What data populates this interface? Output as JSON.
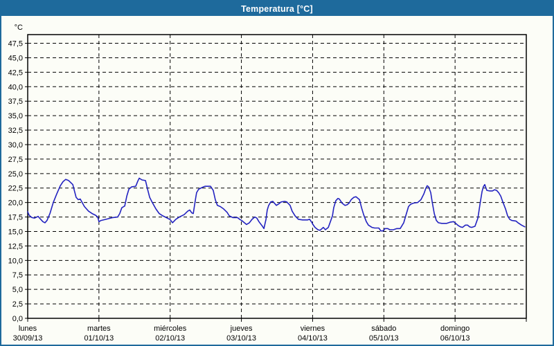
{
  "window": {
    "title": "Temperatura [°C]",
    "title_bar_color": "#1e6a9c",
    "background_color": "#fcfdf7"
  },
  "chart_data": {
    "type": "line",
    "title": "Temperatura [°C]",
    "unit_label": "°C",
    "grid": "dashed",
    "legend": "none",
    "line_color": "#2222c0",
    "y_axis": {
      "min": 0,
      "max": 47.5,
      "step": 2.5,
      "top_edge_value": 49,
      "tick_labels": [
        "0,0",
        "2,5",
        "5,0",
        "7,5",
        "10,0",
        "12,5",
        "15,0",
        "17,5",
        "20,0",
        "22,5",
        "25,0",
        "27,5",
        "30,0",
        "32,5",
        "35,0",
        "37,5",
        "40,0",
        "42,5",
        "45,0",
        "47,5"
      ]
    },
    "x_axis": {
      "hours_total": 168,
      "days": [
        {
          "name": "lunes",
          "date": "30/09/13"
        },
        {
          "name": "martes",
          "date": "01/10/13"
        },
        {
          "name": "miércoles",
          "date": "02/10/13"
        },
        {
          "name": "jueves",
          "date": "03/10/13"
        },
        {
          "name": "viernes",
          "date": "04/10/13"
        },
        {
          "name": "sábado",
          "date": "05/10/13"
        },
        {
          "name": "domingo",
          "date": "06/10/13"
        }
      ]
    },
    "series": [
      {
        "name": "Temperatura",
        "color": "#2222c0",
        "points": [
          [
            0,
            18.4
          ],
          [
            0.5,
            17.8
          ],
          [
            1.4,
            17.4
          ],
          [
            2.3,
            17.3
          ],
          [
            3.5,
            17.6
          ],
          [
            4.2,
            17.2
          ],
          [
            5.1,
            16.7
          ],
          [
            5.8,
            16.5
          ],
          [
            6.5,
            16.9
          ],
          [
            7.5,
            18.1
          ],
          [
            8.6,
            20.0
          ],
          [
            9.8,
            21.5
          ],
          [
            11.0,
            22.9
          ],
          [
            11.9,
            23.6
          ],
          [
            12.8,
            24.0
          ],
          [
            13.8,
            23.8
          ],
          [
            15.2,
            23.1
          ],
          [
            16.3,
            20.9
          ],
          [
            17.0,
            20.5
          ],
          [
            17.7,
            20.6
          ],
          [
            19.1,
            19.3
          ],
          [
            20.5,
            18.5
          ],
          [
            21.7,
            18.1
          ],
          [
            22.9,
            17.8
          ],
          [
            23.6,
            17.5
          ],
          [
            24.0,
            16.7
          ],
          [
            24.7,
            16.9
          ],
          [
            26.4,
            17.1
          ],
          [
            28.7,
            17.4
          ],
          [
            30.3,
            17.5
          ],
          [
            31.0,
            18.1
          ],
          [
            31.7,
            19.1
          ],
          [
            32.7,
            19.4
          ],
          [
            33.4,
            21.1
          ],
          [
            34.1,
            22.3
          ],
          [
            35.0,
            22.7
          ],
          [
            36.4,
            22.8
          ],
          [
            37.1,
            23.7
          ],
          [
            37.6,
            24.2
          ],
          [
            38.5,
            23.9
          ],
          [
            39.7,
            23.8
          ],
          [
            40.4,
            22.3
          ],
          [
            41.1,
            20.9
          ],
          [
            42.0,
            20.0
          ],
          [
            43.2,
            18.9
          ],
          [
            44.3,
            18.1
          ],
          [
            45.5,
            17.7
          ],
          [
            46.7,
            17.4
          ],
          [
            47.8,
            17.1
          ],
          [
            48.1,
            17.0
          ],
          [
            48.8,
            16.5
          ],
          [
            49.9,
            17.1
          ],
          [
            51.1,
            17.5
          ],
          [
            52.7,
            17.9
          ],
          [
            53.9,
            18.5
          ],
          [
            54.6,
            18.7
          ],
          [
            55.3,
            18.2
          ],
          [
            55.8,
            18.1
          ],
          [
            56.2,
            19.5
          ],
          [
            56.6,
            20.8
          ],
          [
            56.9,
            21.7
          ],
          [
            57.6,
            22.3
          ],
          [
            58.8,
            22.6
          ],
          [
            59.7,
            22.8
          ],
          [
            61.6,
            22.8
          ],
          [
            62.5,
            22.1
          ],
          [
            63.2,
            20.5
          ],
          [
            63.9,
            19.5
          ],
          [
            64.9,
            19.3
          ],
          [
            66.0,
            18.9
          ],
          [
            67.2,
            18.3
          ],
          [
            67.9,
            17.7
          ],
          [
            69.1,
            17.4
          ],
          [
            70.7,
            17.4
          ],
          [
            71.4,
            17.1
          ],
          [
            72.1,
            16.9
          ],
          [
            73.0,
            16.5
          ],
          [
            73.7,
            16.2
          ],
          [
            74.7,
            16.5
          ],
          [
            75.6,
            17.1
          ],
          [
            76.5,
            17.5
          ],
          [
            77.2,
            17.3
          ],
          [
            77.9,
            16.7
          ],
          [
            79.1,
            15.9
          ],
          [
            79.6,
            15.5
          ],
          [
            80.3,
            17.1
          ],
          [
            80.7,
            18.7
          ],
          [
            81.2,
            19.5
          ],
          [
            81.9,
            20.1
          ],
          [
            82.6,
            20.2
          ],
          [
            83.8,
            19.5
          ],
          [
            84.7,
            19.8
          ],
          [
            85.4,
            20.1
          ],
          [
            86.6,
            20.2
          ],
          [
            87.3,
            20.1
          ],
          [
            88.4,
            19.5
          ],
          [
            89.1,
            18.5
          ],
          [
            90.1,
            17.7
          ],
          [
            91.2,
            17.1
          ],
          [
            92.6,
            17.0
          ],
          [
            94.3,
            17.0
          ],
          [
            95.0,
            17.1
          ],
          [
            95.7,
            16.6
          ],
          [
            96.1,
            16.2
          ],
          [
            96.8,
            15.7
          ],
          [
            97.8,
            15.3
          ],
          [
            98.5,
            15.2
          ],
          [
            99.6,
            15.7
          ],
          [
            100.3,
            15.3
          ],
          [
            101.3,
            15.7
          ],
          [
            102.0,
            16.7
          ],
          [
            102.7,
            17.7
          ],
          [
            103.1,
            19.1
          ],
          [
            103.8,
            20.3
          ],
          [
            104.5,
            20.7
          ],
          [
            105.0,
            20.6
          ],
          [
            105.9,
            19.9
          ],
          [
            106.9,
            19.5
          ],
          [
            107.6,
            19.6
          ],
          [
            108.3,
            19.9
          ],
          [
            109.0,
            20.5
          ],
          [
            109.9,
            20.9
          ],
          [
            110.6,
            21.0
          ],
          [
            111.8,
            20.5
          ],
          [
            112.5,
            19.1
          ],
          [
            113.2,
            17.9
          ],
          [
            114.1,
            16.7
          ],
          [
            114.8,
            16.1
          ],
          [
            116.0,
            15.7
          ],
          [
            116.9,
            15.6
          ],
          [
            118.3,
            15.6
          ],
          [
            119.0,
            15.1
          ],
          [
            119.7,
            15.1
          ],
          [
            120.4,
            15.5
          ],
          [
            121.3,
            15.5
          ],
          [
            122.0,
            15.3
          ],
          [
            123.2,
            15.3
          ],
          [
            124.4,
            15.5
          ],
          [
            125.5,
            15.5
          ],
          [
            126.7,
            16.5
          ],
          [
            127.6,
            18.1
          ],
          [
            128.3,
            19.3
          ],
          [
            129.0,
            19.7
          ],
          [
            130.0,
            19.9
          ],
          [
            131.4,
            20.0
          ],
          [
            132.5,
            20.5
          ],
          [
            133.5,
            21.5
          ],
          [
            134.2,
            22.5
          ],
          [
            134.6,
            22.9
          ],
          [
            135.1,
            22.7
          ],
          [
            135.8,
            21.7
          ],
          [
            136.3,
            20.1
          ],
          [
            137.0,
            18.1
          ],
          [
            137.7,
            16.9
          ],
          [
            138.4,
            16.5
          ],
          [
            139.5,
            16.4
          ],
          [
            141.2,
            16.4
          ],
          [
            142.3,
            16.6
          ],
          [
            143.5,
            16.7
          ],
          [
            144.2,
            16.4
          ],
          [
            145.1,
            16.0
          ],
          [
            145.8,
            15.8
          ],
          [
            146.5,
            15.7
          ],
          [
            147.5,
            16.1
          ],
          [
            148.2,
            16.1
          ],
          [
            148.9,
            15.8
          ],
          [
            149.6,
            15.7
          ],
          [
            150.7,
            15.9
          ],
          [
            151.7,
            17.3
          ],
          [
            152.4,
            19.7
          ],
          [
            153.1,
            21.9
          ],
          [
            153.5,
            22.7
          ],
          [
            154.0,
            23.1
          ],
          [
            154.7,
            22.1
          ],
          [
            155.6,
            22.0
          ],
          [
            156.6,
            22.0
          ],
          [
            157.3,
            22.2
          ],
          [
            158.0,
            22.1
          ],
          [
            158.7,
            21.7
          ],
          [
            159.4,
            21.1
          ],
          [
            160.1,
            20.1
          ],
          [
            161.0,
            18.9
          ],
          [
            161.7,
            17.7
          ],
          [
            162.4,
            17.1
          ],
          [
            163.1,
            16.9
          ],
          [
            164.5,
            16.8
          ],
          [
            165.2,
            16.5
          ],
          [
            166.4,
            16.1
          ],
          [
            167.5,
            15.8
          ]
        ]
      }
    ]
  }
}
